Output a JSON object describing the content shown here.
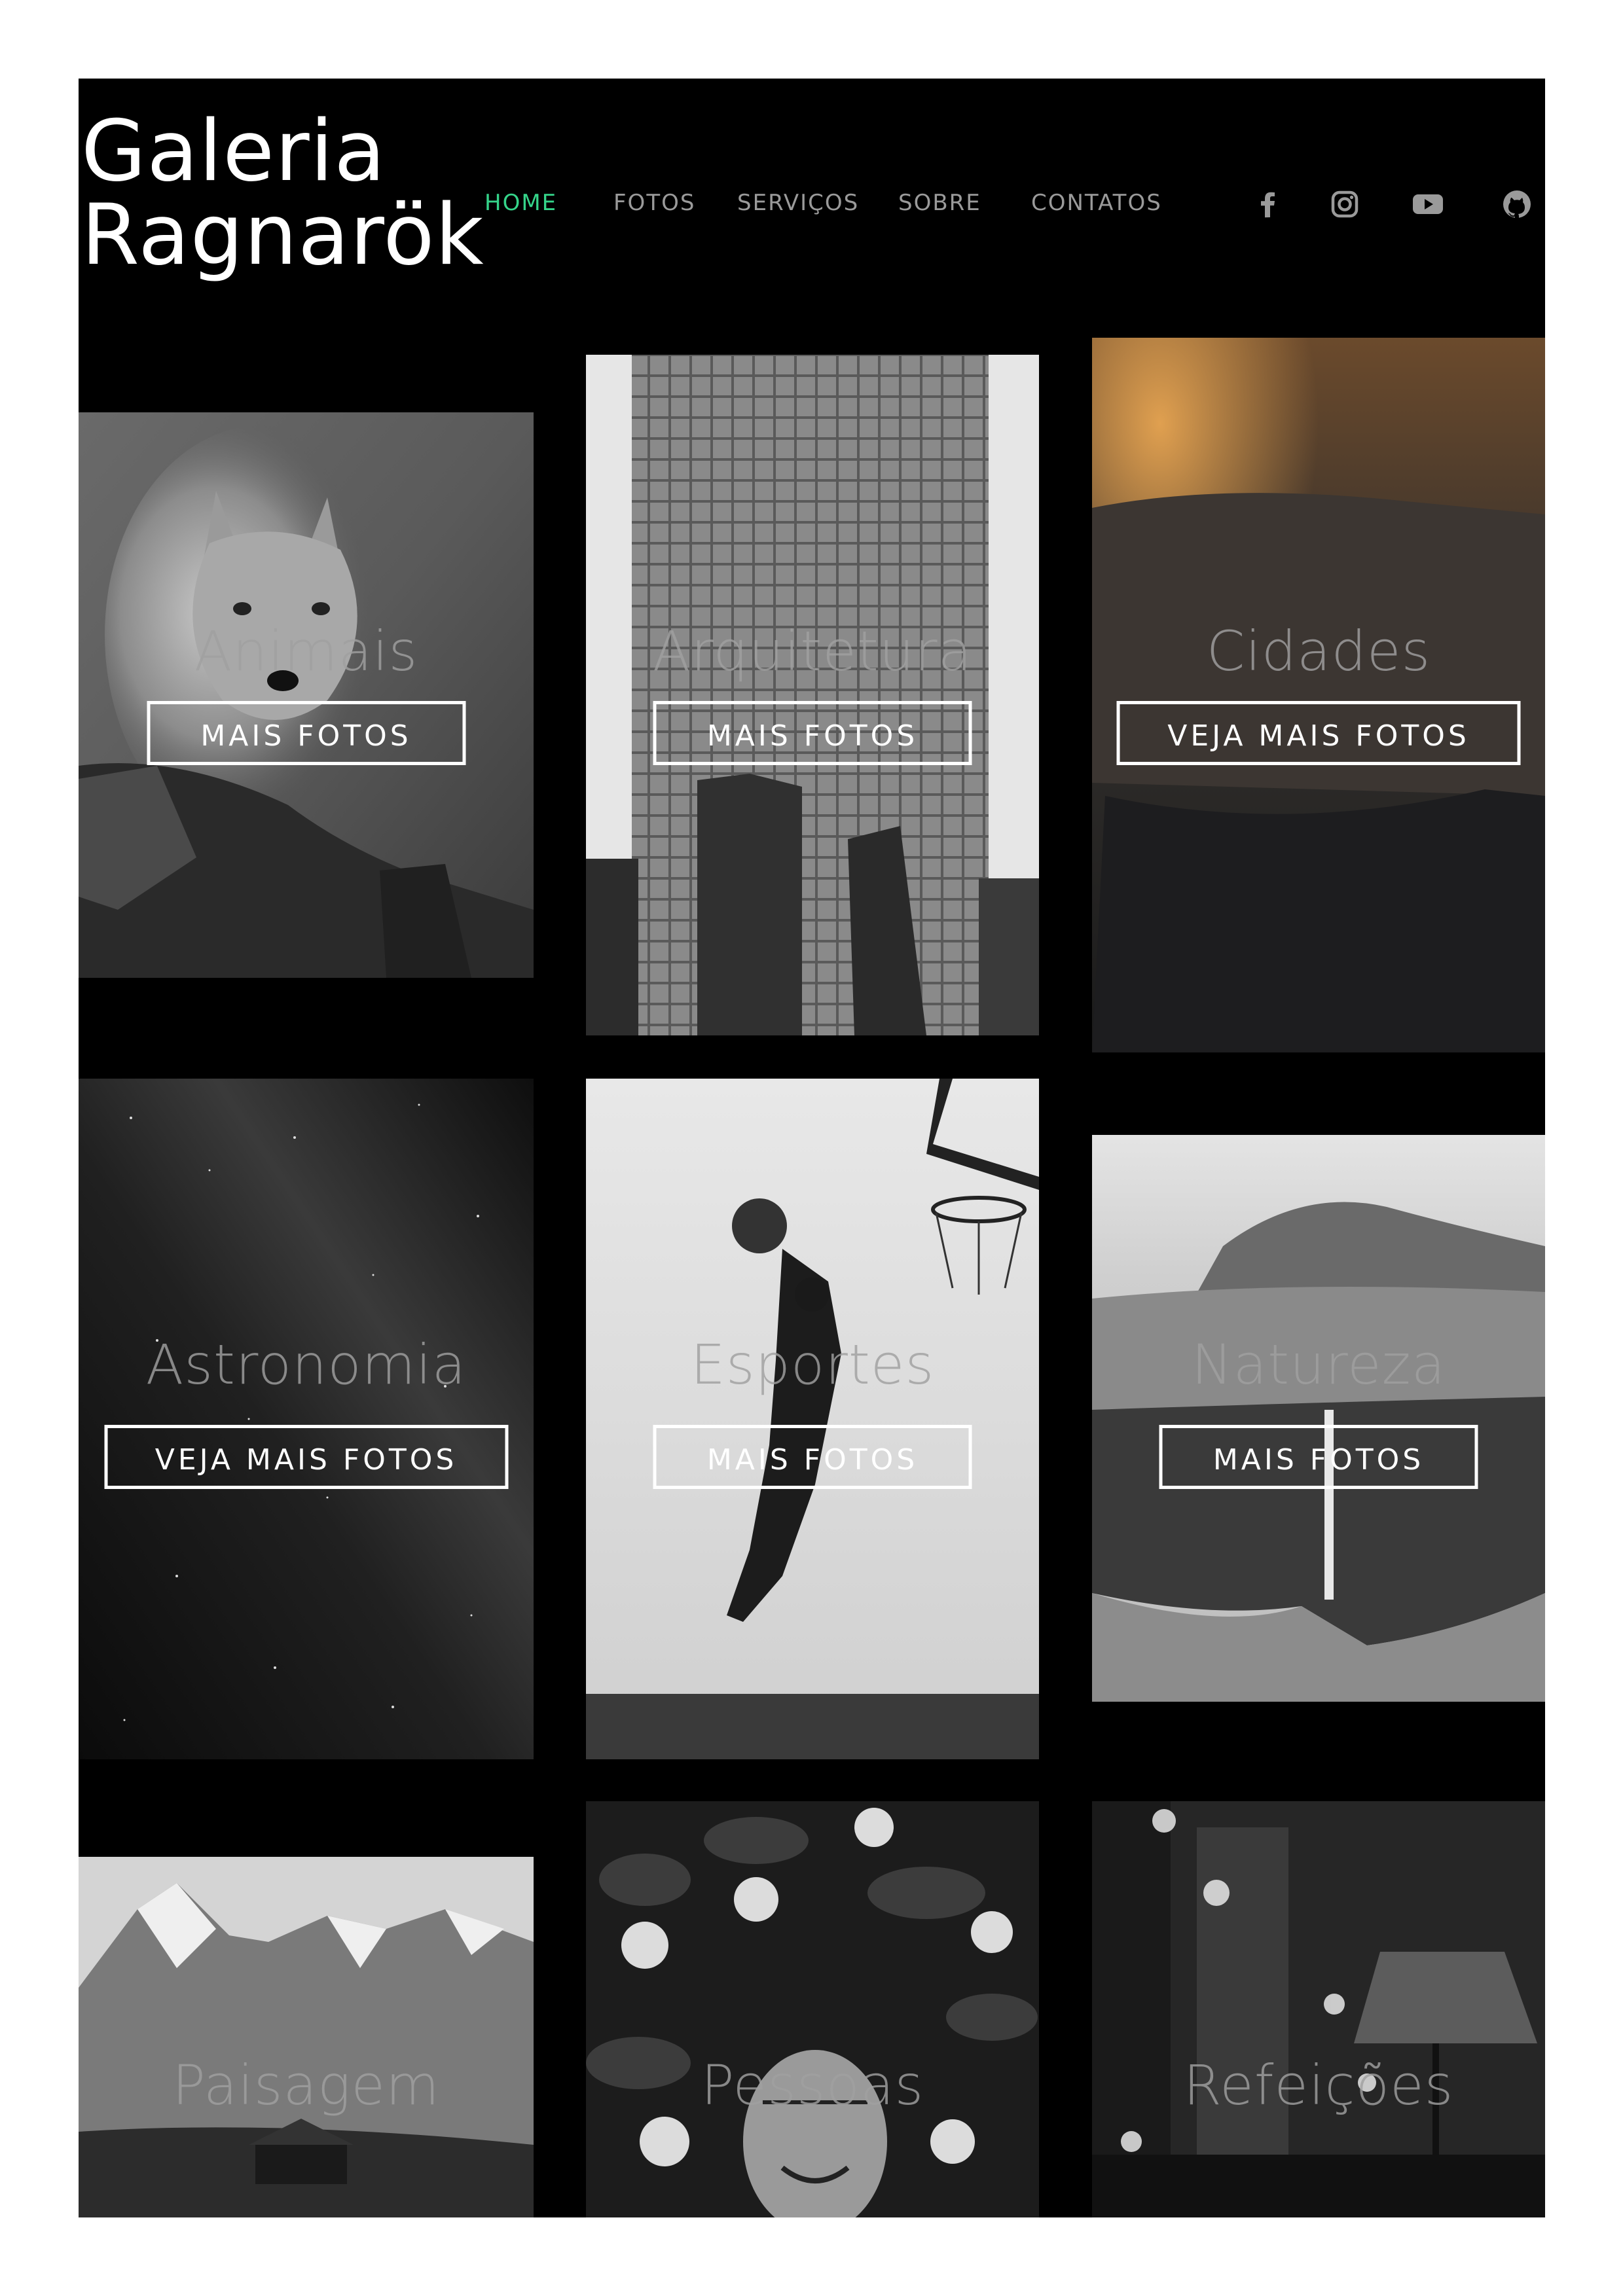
{
  "site": {
    "logo_line1": "Galeria",
    "logo_line2": "Ragnarök",
    "nav": [
      {
        "label": "HOME",
        "active": true
      },
      {
        "label": "FOTOS",
        "active": false
      },
      {
        "label": "SERVIÇOS",
        "active": false
      },
      {
        "label": "SOBRE",
        "active": false
      },
      {
        "label": "CONTATOS",
        "active": false
      }
    ],
    "social_icons": [
      "facebook-icon",
      "instagram-icon",
      "youtube-icon",
      "github-icon"
    ],
    "colors": {
      "background": "#000000",
      "accent": "#35d48a",
      "nav_text": "#9a9a9a",
      "button_border": "#ffffff"
    }
  },
  "gallery": {
    "cards": [
      {
        "title": "Animais",
        "button": "MAIS FOTOS",
        "image": "wolf-photo"
      },
      {
        "title": "Arquitetura",
        "button": "MAIS FOTOS",
        "image": "skyscraper-photo"
      },
      {
        "title": "Cidades",
        "button": "VEJA MAIS FOTOS",
        "image": "aerial-city-photo"
      },
      {
        "title": "Astronomia",
        "button": "VEJA MAIS FOTOS",
        "image": "milky-way-photo"
      },
      {
        "title": "Esportes",
        "button": "MAIS FOTOS",
        "image": "basketball-player-photo"
      },
      {
        "title": "Natureza",
        "button": "MAIS FOTOS",
        "image": "waterfall-cliff-photo"
      },
      {
        "title": "Paisagem",
        "button": "",
        "image": "mountain-photo"
      },
      {
        "title": "Pessoas",
        "button": "",
        "image": "woman-flowers-photo"
      },
      {
        "title": "Refeições",
        "button": "",
        "image": "restaurant-photo"
      }
    ]
  }
}
